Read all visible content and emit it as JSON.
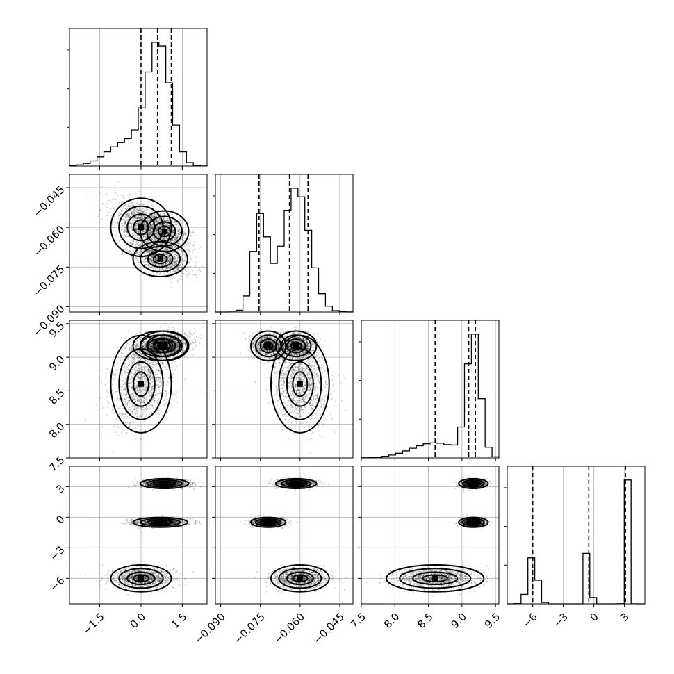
{
  "chart_data": {
    "type": "corner",
    "title": "",
    "parameters": [
      {
        "range": [
          -2.6,
          2.4
        ],
        "ticks": [
          -1.5,
          0.0,
          1.5
        ],
        "tick_labels": [
          "−1.5",
          "0.0",
          "1.5"
        ],
        "quantiles": [
          0.0,
          0.6,
          1.1
        ],
        "modes": [
          {
            "mean": 0.65,
            "sd": 0.42,
            "weight": 0.75
          },
          {
            "mean": -0.5,
            "sd": 0.7,
            "weight": 0.25
          }
        ]
      },
      {
        "range": [
          -0.092,
          -0.04
        ],
        "ticks": [
          -0.09,
          -0.075,
          -0.06,
          -0.045
        ],
        "tick_labels": [
          "−0.090",
          "−0.075",
          "−0.060",
          "−0.045"
        ],
        "quantiles": [
          -0.0755,
          -0.064,
          -0.057
        ],
        "modes": [
          {
            "mean": -0.075,
            "sd": 0.0028,
            "weight": 0.3
          },
          {
            "mean": -0.0615,
            "sd": 0.005,
            "weight": 0.7
          }
        ]
      },
      {
        "range": [
          7.5,
          9.55
        ],
        "ticks": [
          7.5,
          8.0,
          8.5,
          9.0,
          9.5
        ],
        "tick_labels": [
          "7.5",
          "8.0",
          "8.5",
          "9.0",
          "9.5"
        ],
        "quantiles": [
          8.6,
          9.1,
          9.2
        ],
        "modes": [
          {
            "mean": 9.17,
            "sd": 0.1,
            "weight": 0.7
          },
          {
            "mean": 8.6,
            "sd": 0.35,
            "weight": 0.3
          }
        ]
      },
      {
        "range": [
          -8.5,
          5.0
        ],
        "ticks": [
          -6,
          -3,
          0,
          3
        ],
        "tick_labels": [
          "−6",
          "−3",
          "0",
          "3"
        ],
        "quantiles": [
          -6.0,
          -0.5,
          3.1
        ],
        "modes": [
          {
            "mean": -6.0,
            "sd": 0.45,
            "weight": 0.33
          },
          {
            "mean": -0.5,
            "sd": 0.18,
            "weight": 0.33
          },
          {
            "mean": 3.3,
            "sd": 0.18,
            "weight": 0.34
          }
        ]
      }
    ],
    "clusters": [
      {
        "center": [
          0.85,
          -0.0615,
          9.17,
          3.3
        ],
        "sd": [
          0.4,
          0.0035,
          0.1,
          0.22
        ],
        "weight": 0.34
      },
      {
        "center": [
          0.7,
          -0.072,
          9.17,
          -0.5
        ],
        "sd": [
          0.45,
          0.003,
          0.1,
          0.22
        ],
        "weight": 0.33
      },
      {
        "center": [
          0.0,
          -0.06,
          8.6,
          -6.0
        ],
        "sd": [
          0.5,
          0.005,
          0.33,
          0.6
        ],
        "weight": 0.33
      }
    ],
    "n_samples": 4000,
    "grid": true,
    "contour_levels": [
      0.2,
      0.5,
      0.8
    ]
  }
}
